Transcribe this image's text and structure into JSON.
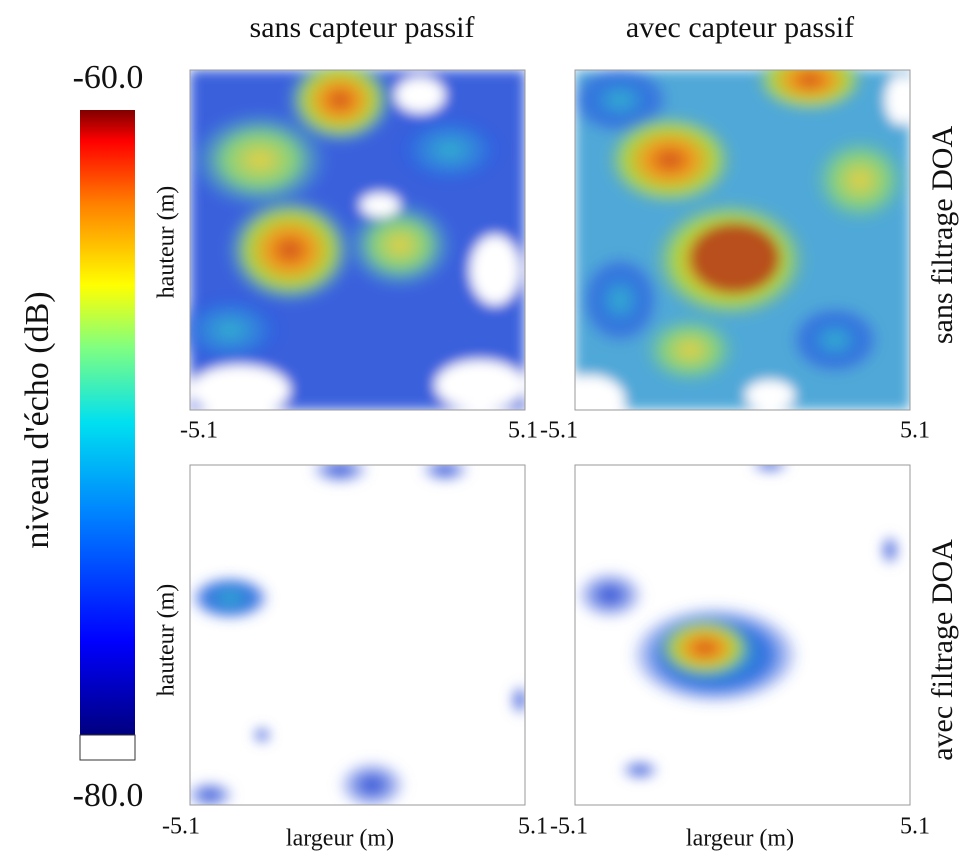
{
  "colorbar": {
    "label": "niveau d'écho (dB)",
    "max": "-60.0",
    "min": "-80.0"
  },
  "columns": [
    "sans capteur passif",
    "avec capteur passif"
  ],
  "rows": [
    "sans filtrage DOA",
    "avec filtrage DOA"
  ],
  "panels": [
    {
      "ylabel": "hauteur (m)",
      "xticks": [
        "-5.1",
        "5.1"
      ]
    },
    {
      "xticks": [
        "-5.1",
        "5.1"
      ]
    },
    {
      "ylabel": "hauteur (m)",
      "xlabel": "largeur (m)",
      "xticks": [
        "-5.1",
        "5.1"
      ]
    },
    {
      "xlabel": "largeur (m)",
      "xticks": [
        "-5.1",
        "5.1"
      ]
    }
  ]
}
